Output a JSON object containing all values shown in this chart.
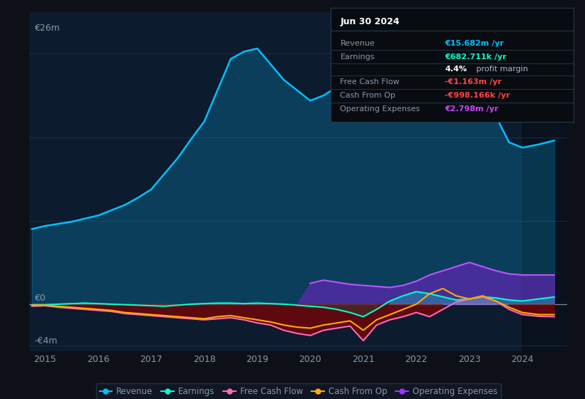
{
  "bg_color": "#0d1117",
  "plot_bg_color": "#0d1b2e",
  "grid_color": "#1e3050",
  "text_color": "#8899aa",
  "title_color": "#ffffff",
  "ylabel_text": "€26m",
  "ylabel_bottom": "-€4m",
  "zero_label": "€0",
  "x_ticks": [
    2015,
    2016,
    2017,
    2018,
    2019,
    2020,
    2021,
    2022,
    2023,
    2024
  ],
  "ylim": [
    -4.5,
    28
  ],
  "xlim": [
    2014.7,
    2024.85
  ],
  "shaded_region_start": 2024.0,
  "info_box": {
    "title": "Jun 30 2024",
    "rows": [
      {
        "label": "Revenue",
        "value": "€15.682m /yr",
        "value_color": "#00bfff"
      },
      {
        "label": "Earnings",
        "value": "€682.711k /yr",
        "value_color": "#00ffcc"
      },
      {
        "label": "",
        "value": "4.4% profit margin",
        "value_color": "#ffffff"
      },
      {
        "label": "Free Cash Flow",
        "value": "-€1.163m /yr",
        "value_color": "#ff4444"
      },
      {
        "label": "Cash From Op",
        "value": "-€998.166k /yr",
        "value_color": "#ff4444"
      },
      {
        "label": "Operating Expenses",
        "value": "€2.798m /yr",
        "value_color": "#cc44ff"
      }
    ]
  },
  "legend": [
    {
      "label": "Revenue",
      "color": "#00bfff"
    },
    {
      "label": "Earnings",
      "color": "#00ffcc"
    },
    {
      "label": "Free Cash Flow",
      "color": "#ff69b4"
    },
    {
      "label": "Cash From Op",
      "color": "#ffaa00"
    },
    {
      "label": "Operating Expenses",
      "color": "#9933ff"
    }
  ],
  "series": {
    "years": [
      2014.75,
      2015.0,
      2015.25,
      2015.5,
      2015.75,
      2016.0,
      2016.25,
      2016.5,
      2016.75,
      2017.0,
      2017.25,
      2017.5,
      2017.75,
      2018.0,
      2018.25,
      2018.5,
      2018.75,
      2019.0,
      2019.25,
      2019.5,
      2019.75,
      2020.0,
      2020.25,
      2020.5,
      2020.75,
      2021.0,
      2021.25,
      2021.5,
      2021.75,
      2022.0,
      2022.25,
      2022.5,
      2022.75,
      2023.0,
      2023.25,
      2023.5,
      2023.75,
      2024.0,
      2024.3,
      2024.6
    ],
    "revenue": [
      7.2,
      7.5,
      7.7,
      7.9,
      8.2,
      8.5,
      9.0,
      9.5,
      10.2,
      11.0,
      12.5,
      14.0,
      15.8,
      17.5,
      20.5,
      23.5,
      24.2,
      24.5,
      23.0,
      21.5,
      20.5,
      19.5,
      20.0,
      20.8,
      21.5,
      22.5,
      23.5,
      24.0,
      24.5,
      25.0,
      25.5,
      25.8,
      25.5,
      24.5,
      21.5,
      18.0,
      15.5,
      15.0,
      15.3,
      15.682
    ],
    "earnings": [
      -0.05,
      -0.05,
      0.0,
      0.05,
      0.1,
      0.05,
      0.0,
      -0.05,
      -0.1,
      -0.15,
      -0.2,
      -0.1,
      0.0,
      0.05,
      0.1,
      0.1,
      0.05,
      0.1,
      0.05,
      0.0,
      -0.1,
      -0.2,
      -0.3,
      -0.5,
      -0.8,
      -1.2,
      -0.5,
      0.3,
      0.8,
      1.2,
      1.0,
      0.7,
      0.4,
      0.5,
      0.7,
      0.6,
      0.4,
      0.3,
      0.5,
      0.683
    ],
    "free_cash_flow": [
      -0.2,
      -0.15,
      -0.3,
      -0.4,
      -0.5,
      -0.6,
      -0.7,
      -0.9,
      -1.0,
      -1.1,
      -1.2,
      -1.3,
      -1.4,
      -1.5,
      -1.4,
      -1.3,
      -1.5,
      -1.8,
      -2.0,
      -2.5,
      -2.8,
      -3.0,
      -2.5,
      -2.3,
      -2.1,
      -3.5,
      -2.0,
      -1.5,
      -1.2,
      -0.8,
      -1.2,
      -0.5,
      0.2,
      0.5,
      0.7,
      0.3,
      -0.5,
      -1.0,
      -1.163,
      -1.2
    ],
    "cash_from_op": [
      -0.1,
      -0.1,
      -0.2,
      -0.3,
      -0.4,
      -0.5,
      -0.6,
      -0.8,
      -0.9,
      -1.0,
      -1.1,
      -1.2,
      -1.3,
      -1.4,
      -1.2,
      -1.1,
      -1.3,
      -1.5,
      -1.7,
      -2.0,
      -2.2,
      -2.3,
      -2.0,
      -1.8,
      -1.6,
      -2.5,
      -1.5,
      -1.0,
      -0.5,
      0.0,
      1.0,
      1.5,
      0.8,
      0.5,
      0.8,
      0.3,
      -0.3,
      -0.8,
      -0.998,
      -1.0
    ],
    "op_expenses": [
      0.0,
      0.0,
      0.0,
      0.0,
      0.0,
      0.0,
      0.0,
      0.0,
      0.0,
      0.0,
      0.0,
      0.0,
      0.0,
      0.0,
      0.0,
      0.0,
      0.0,
      0.0,
      0.0,
      0.0,
      0.0,
      2.0,
      2.3,
      2.1,
      1.9,
      1.8,
      1.7,
      1.6,
      1.8,
      2.2,
      2.8,
      3.2,
      3.6,
      4.0,
      3.6,
      3.2,
      2.9,
      2.798,
      2.8,
      2.798
    ]
  }
}
